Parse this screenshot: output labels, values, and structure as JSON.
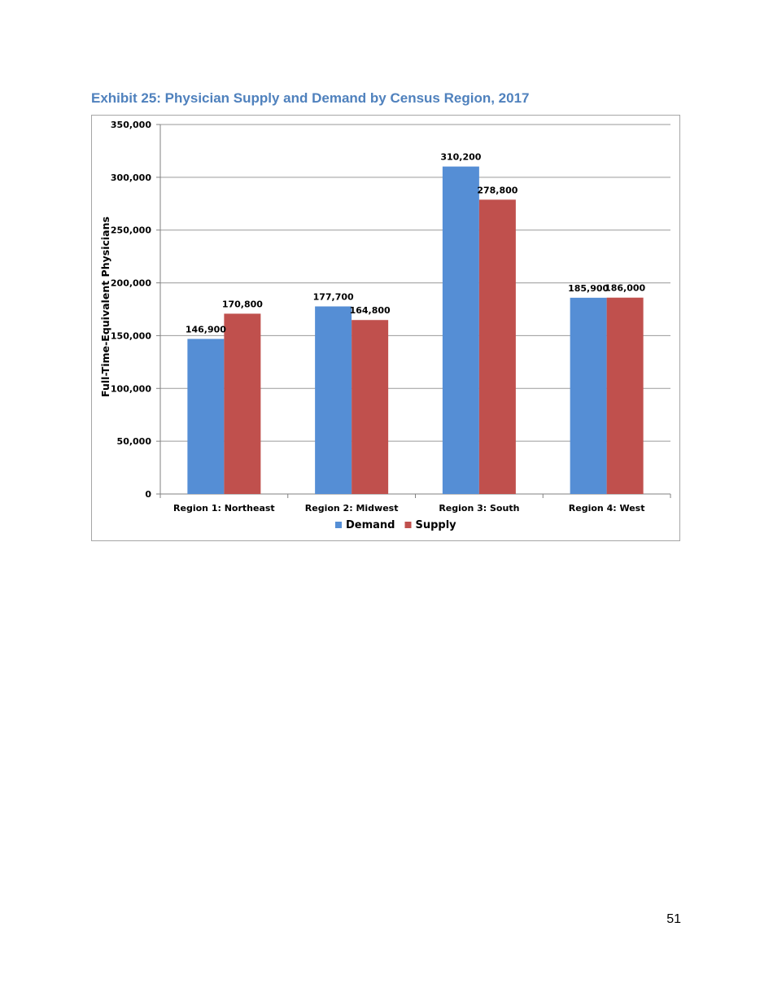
{
  "page": {
    "title": "Exhibit 25: Physician Supply and Demand by Census Region, 2017",
    "page_number": "51",
    "title_color": "#4f81bd"
  },
  "chart_data": {
    "type": "bar",
    "title": "",
    "xlabel": "",
    "ylabel": "Full-Time-Equivalent Physicians",
    "categories": [
      "Region 1: Northeast",
      "Region 2: Midwest",
      "Region 3: South",
      "Region 4: West"
    ],
    "series": [
      {
        "name": "Demand",
        "color": "#558ed5",
        "values": [
          146900,
          177700,
          310200,
          185900
        ],
        "labels": [
          "146,900",
          "177,700",
          "310,200",
          "185,900"
        ]
      },
      {
        "name": "Supply",
        "color": "#c0504d",
        "values": [
          170800,
          164800,
          278800,
          186000
        ],
        "labels": [
          "170,800",
          "164,800",
          "278,800",
          "186,000"
        ]
      }
    ],
    "ylim": [
      0,
      350000
    ],
    "yticks": [
      0,
      50000,
      100000,
      150000,
      200000,
      250000,
      300000,
      350000
    ],
    "ytick_labels": [
      "0",
      "50,000",
      "100,000",
      "150,000",
      "200,000",
      "250,000",
      "300,000",
      "350,000"
    ],
    "grid": true,
    "legend": "bottom-center"
  }
}
